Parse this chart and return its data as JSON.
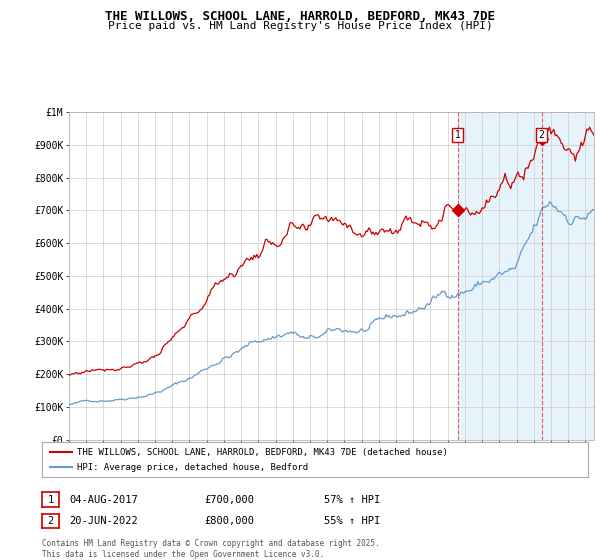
{
  "title": "THE WILLOWS, SCHOOL LANE, HARROLD, BEDFORD, MK43 7DE",
  "subtitle": "Price paid vs. HM Land Registry's House Price Index (HPI)",
  "ylabel_ticks": [
    "£0",
    "£100K",
    "£200K",
    "£300K",
    "£400K",
    "£500K",
    "£600K",
    "£700K",
    "£800K",
    "£900K",
    "£1M"
  ],
  "ytick_values": [
    0,
    100000,
    200000,
    300000,
    400000,
    500000,
    600000,
    700000,
    800000,
    900000,
    1000000
  ],
  "xstart_year": 1995,
  "xend_year": 2025,
  "sale1_date": 2017.58,
  "sale1_label": "1",
  "sale1_price": 700000,
  "sale2_date": 2022.46,
  "sale2_label": "2",
  "sale2_price": 800000,
  "red_line_color": "#cc0000",
  "blue_line_color": "#6699cc",
  "vline_color": "#cc0000",
  "vline_alpha": 0.6,
  "grid_color": "#cccccc",
  "background_color": "#ffffff",
  "shade_color": "#d0e8f8",
  "shade_alpha": 0.5,
  "legend_label1": "THE WILLOWS, SCHOOL LANE, HARROLD, BEDFORD, MK43 7DE (detached house)",
  "legend_label2": "HPI: Average price, detached house, Bedford",
  "table_row1": [
    "1",
    "04-AUG-2017",
    "£700,000",
    "57% ↑ HPI"
  ],
  "table_row2": [
    "2",
    "20-JUN-2022",
    "£800,000",
    "55% ↑ HPI"
  ],
  "footnote": "Contains HM Land Registry data © Crown copyright and database right 2025.\nThis data is licensed under the Open Government Licence v3.0.",
  "title_fontsize": 9,
  "subtitle_fontsize": 8,
  "tick_fontsize": 7,
  "legend_fontsize": 6.5,
  "table_fontsize": 7.5,
  "footnote_fontsize": 5.5
}
